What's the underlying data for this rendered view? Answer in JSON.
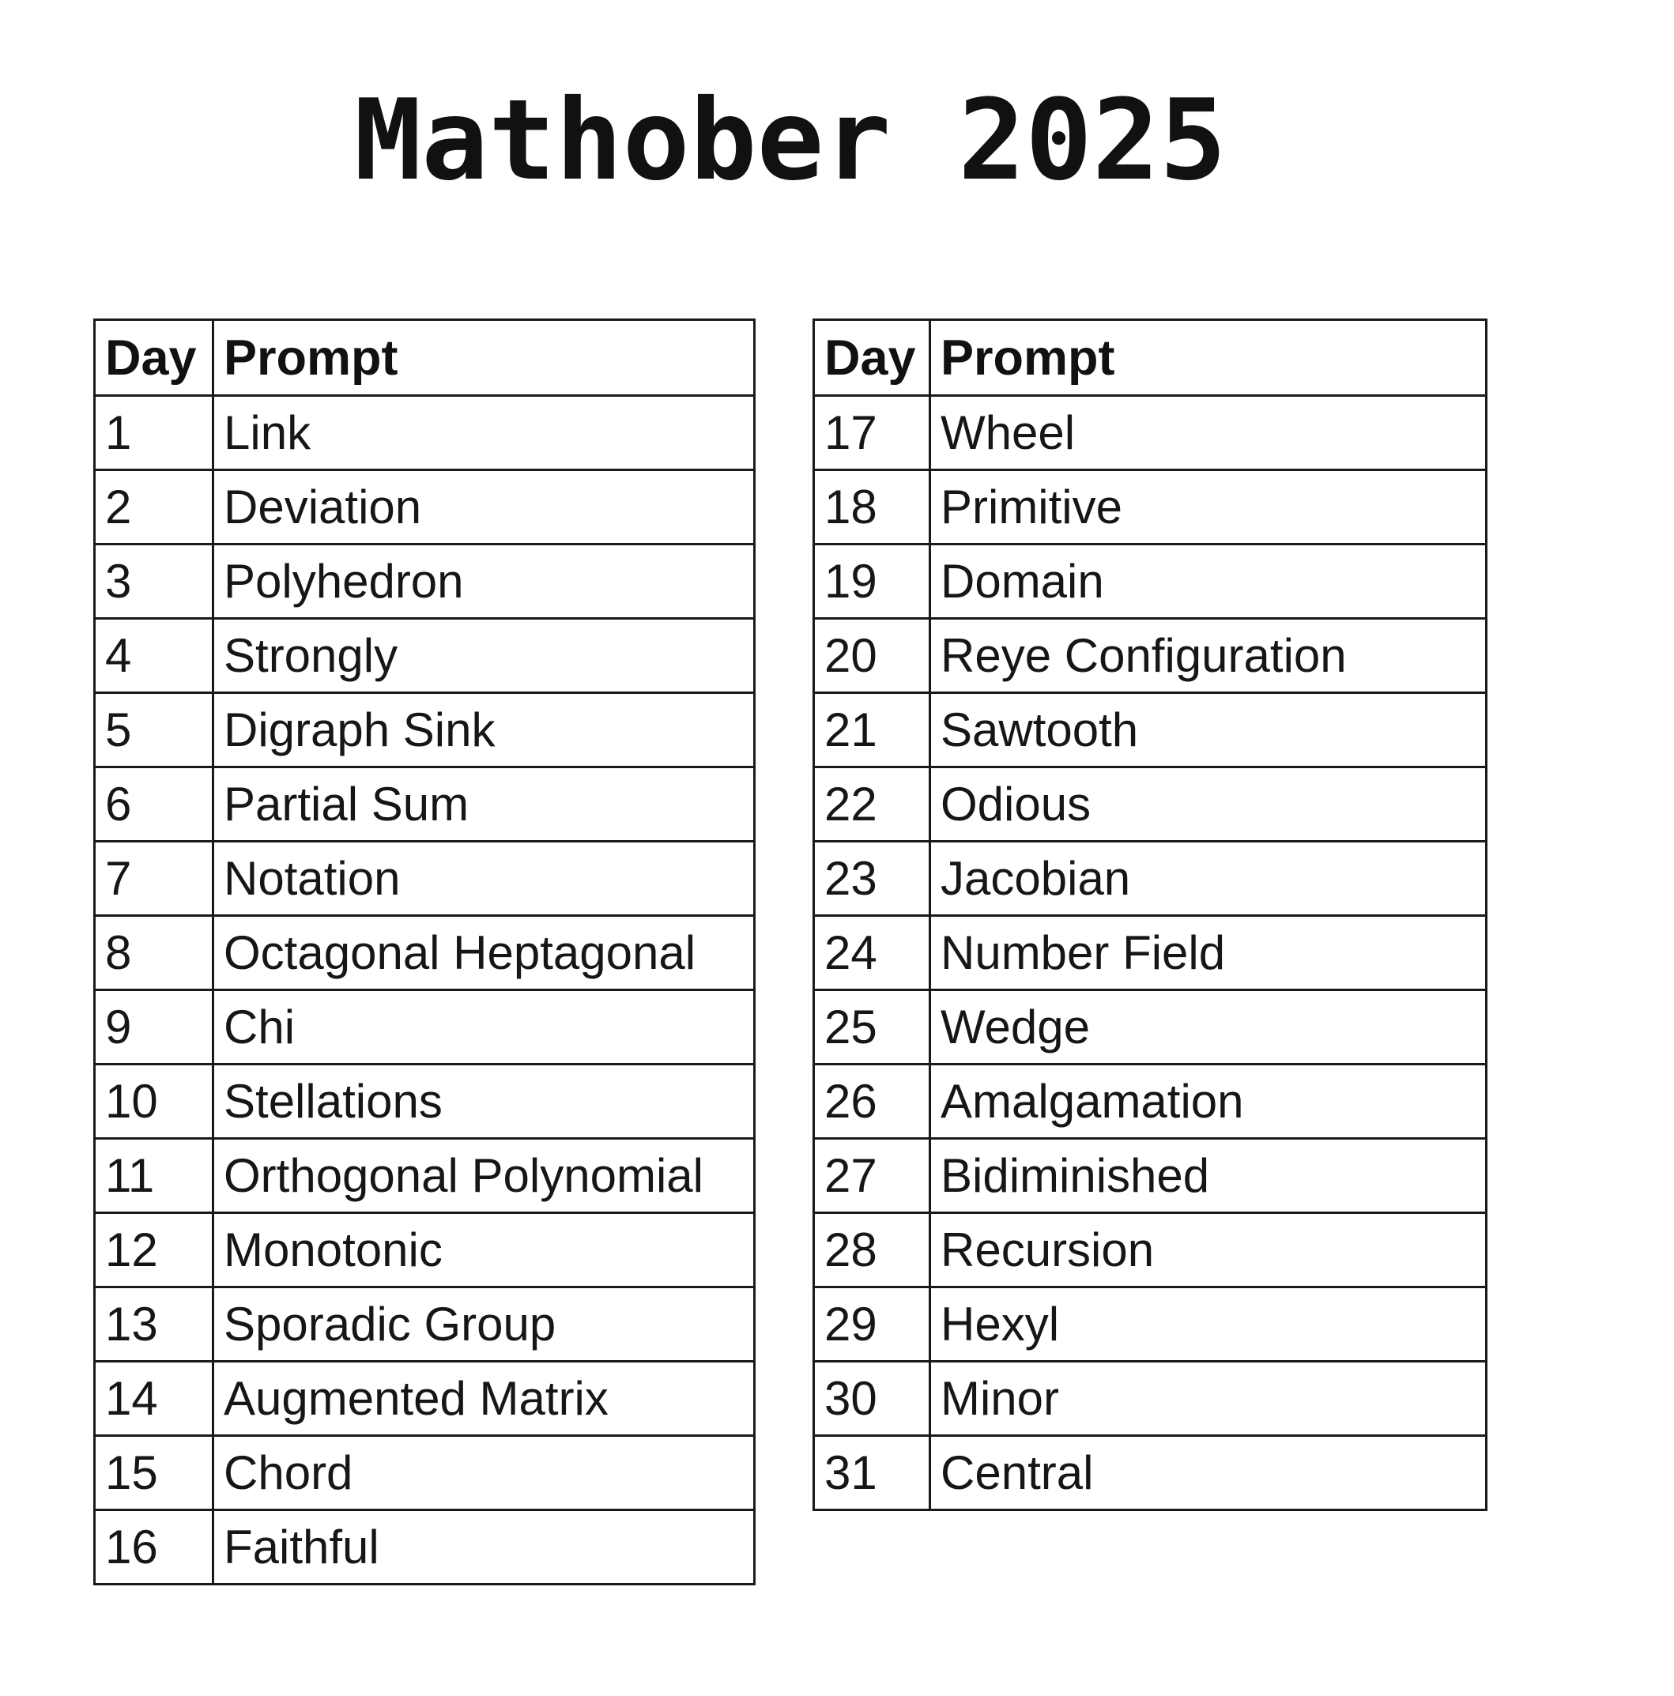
{
  "page": {
    "title": "Mathober 2025",
    "background_color": "#ffffff",
    "text_color": "#111111",
    "border_color": "#1a1a1a"
  },
  "tables": [
    {
      "name": "days-1-16",
      "headers": [
        "Day",
        "Prompt"
      ],
      "rows": [
        [
          "1",
          "Link"
        ],
        [
          "2",
          "Deviation"
        ],
        [
          "3",
          "Polyhedron"
        ],
        [
          "4",
          "Strongly"
        ],
        [
          "5",
          "Digraph Sink"
        ],
        [
          "6",
          "Partial Sum"
        ],
        [
          "7",
          "Notation"
        ],
        [
          "8",
          "Octagonal Heptagonal"
        ],
        [
          "9",
          "Chi"
        ],
        [
          "10",
          "Stellations"
        ],
        [
          "11",
          "Orthogonal Polynomial"
        ],
        [
          "12",
          "Monotonic"
        ],
        [
          "13",
          "Sporadic Group"
        ],
        [
          "14",
          "Augmented Matrix"
        ],
        [
          "15",
          "Chord"
        ],
        [
          "16",
          "Faithful"
        ]
      ]
    },
    {
      "name": "days-17-31",
      "headers": [
        "Day",
        "Prompt"
      ],
      "rows": [
        [
          "17",
          "Wheel"
        ],
        [
          "18",
          "Primitive"
        ],
        [
          "19",
          "Domain"
        ],
        [
          "20",
          "Reye Configuration"
        ],
        [
          "21",
          "Sawtooth"
        ],
        [
          "22",
          "Odious"
        ],
        [
          "23",
          "Jacobian"
        ],
        [
          "24",
          "Number Field"
        ],
        [
          "25",
          "Wedge"
        ],
        [
          "26",
          "Amalgamation"
        ],
        [
          "27",
          "Bidiminished"
        ],
        [
          "28",
          "Recursion"
        ],
        [
          "29",
          "Hexyl"
        ],
        [
          "30",
          "Minor"
        ],
        [
          "31",
          "Central"
        ]
      ]
    }
  ]
}
